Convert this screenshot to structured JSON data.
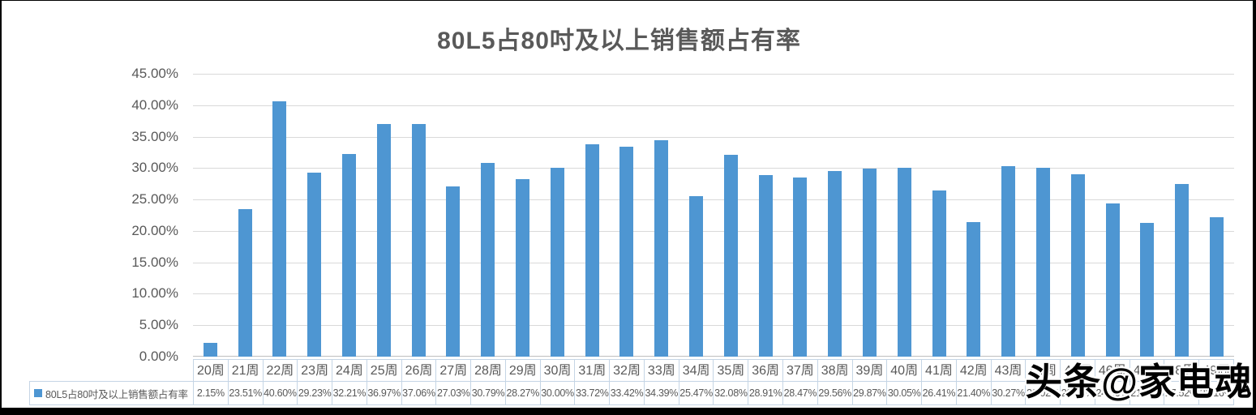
{
  "title": "80L5占80吋及以上销售额占有率",
  "watermark_text": "头条@家电魂",
  "colors": {
    "bar": "#4e96d2",
    "grid": "#d9d9d9",
    "axis": "#bfbfbf",
    "text": "#595959",
    "table_border": "#c5d5e5",
    "watermark_fill": "#000000",
    "watermark_outline": "#ffffff"
  },
  "y_axis": {
    "ticks": [
      "45.00%",
      "40.00%",
      "35.00%",
      "30.00%",
      "25.00%",
      "20.00%",
      "15.00%",
      "10.00%",
      "5.00%",
      "0.00%"
    ]
  },
  "legend": {
    "label": "80L5占80吋及以上销售额占有率"
  },
  "chart_data": {
    "type": "bar",
    "title": "80L5占80吋及以上销售额占有率",
    "categories": [
      "20周",
      "21周",
      "22周",
      "23周",
      "24周",
      "25周",
      "26周",
      "27周",
      "28周",
      "29周",
      "30周",
      "31周",
      "32周",
      "33周",
      "34周",
      "35周",
      "36周",
      "37周",
      "38周",
      "39周",
      "40周",
      "41周",
      "42周",
      "43周",
      "44周",
      "45周",
      "46周",
      "47周",
      "48周",
      "49周"
    ],
    "series": [
      {
        "name": "80L5占80吋及以上销售额占有率",
        "values": [
          2.15,
          23.51,
          40.6,
          29.23,
          32.21,
          36.97,
          37.06,
          27.03,
          30.79,
          28.27,
          30.0,
          33.72,
          33.42,
          34.39,
          25.47,
          32.08,
          28.91,
          28.47,
          29.56,
          29.87,
          30.05,
          26.41,
          21.4,
          30.27,
          30.02,
          29.04,
          24.36,
          21.3,
          27.52,
          22.16
        ]
      }
    ],
    "value_labels": [
      "2.15%",
      "23.51%",
      "40.60%",
      "29.23%",
      "32.21%",
      "36.97%",
      "37.06%",
      "27.03%",
      "30.79%",
      "28.27%",
      "30.00%",
      "33.72%",
      "33.42%",
      "34.39%",
      "25.47%",
      "32.08%",
      "28.91%",
      "28.47%",
      "29.56%",
      "29.87%",
      "30.05%",
      "26.41%",
      "21.40%",
      "30.27%",
      "30.02%",
      "29.04%",
      "24.36%",
      "21.30%",
      "27.52%",
      "22.16%"
    ],
    "xlabel": "",
    "ylabel": "",
    "ylim": [
      0,
      45
    ],
    "ytick_step": 5,
    "grid": true,
    "legend_position": "bottom-data-table"
  }
}
